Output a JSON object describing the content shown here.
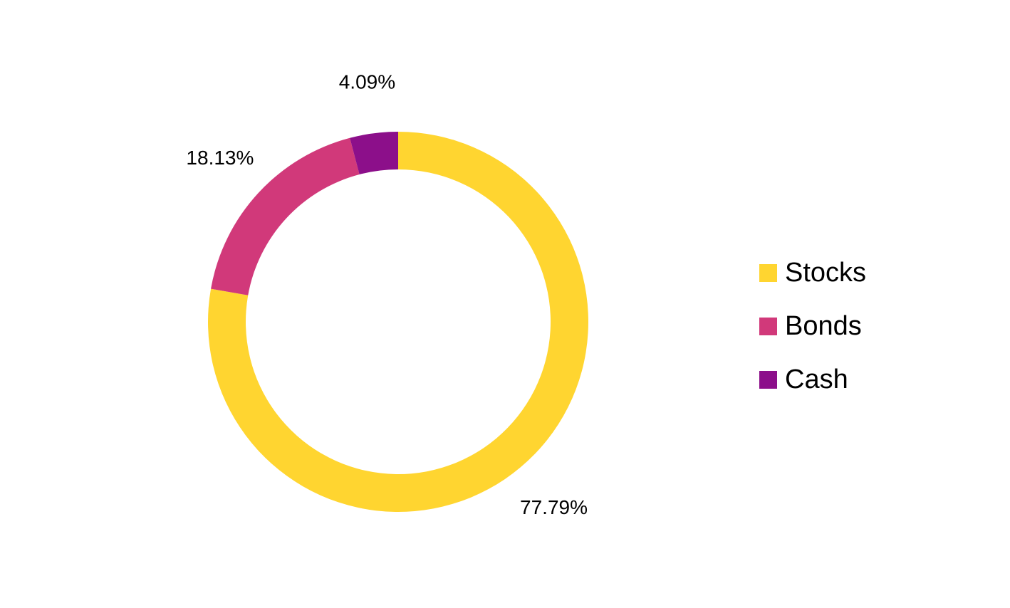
{
  "chart_data": {
    "type": "pie",
    "donut": true,
    "categories": [
      "Stocks",
      "Bonds",
      "Cash"
    ],
    "values": [
      77.79,
      18.13,
      4.09
    ],
    "value_labels": [
      "77.79%",
      "18.13%",
      "4.09%"
    ],
    "colors": [
      "#FFD530",
      "#D1397A",
      "#8C0F8A"
    ],
    "start_angle_deg": 0,
    "direction": "clockwise",
    "legend_position": "right"
  }
}
